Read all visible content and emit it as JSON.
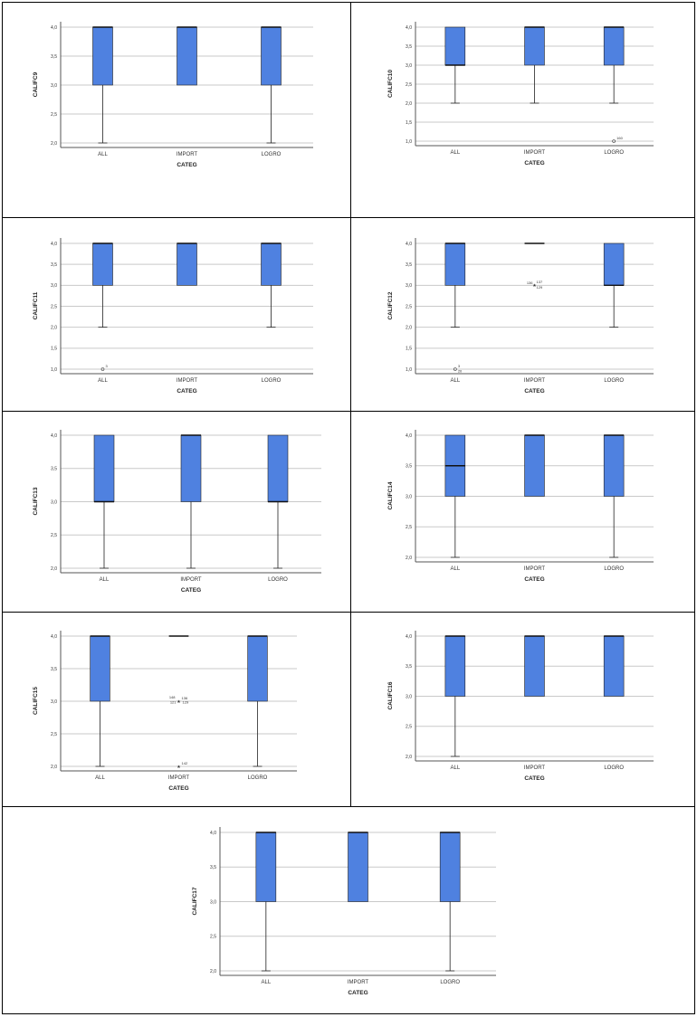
{
  "colors": {
    "box_fill": "#4f81e0",
    "box_stroke": "#222222",
    "grid": "#c9c9c9",
    "axis": "#555555",
    "text": "#333333"
  },
  "chart_data": [
    {
      "type": "boxplot",
      "ylabel": "CALIFC9",
      "xlabel": "CATEG",
      "yticks": [
        "2,0",
        "2,5",
        "3,0",
        "3,5",
        "4,0"
      ],
      "ylim": [
        2.0,
        4.0
      ],
      "categories": [
        "ALL",
        "IMPORT",
        "LOGRO"
      ],
      "boxes": [
        {
          "q1": 3.0,
          "median": 4.0,
          "q3": 4.0,
          "whisker_low": 2.0,
          "whisker_high": 4.0
        },
        {
          "q1": 3.0,
          "median": 4.0,
          "q3": 4.0,
          "whisker_low": 3.0,
          "whisker_high": 4.0
        },
        {
          "q1": 3.0,
          "median": 4.0,
          "q3": 4.0,
          "whisker_low": 2.0,
          "whisker_high": 4.0
        }
      ],
      "outliers": []
    },
    {
      "type": "boxplot",
      "ylabel": "CALIFC10",
      "xlabel": "CATEG",
      "yticks": [
        "1,0",
        "1,5",
        "2,0",
        "2,5",
        "3,0",
        "3,5",
        "4,0"
      ],
      "ylim": [
        1.0,
        4.0
      ],
      "categories": [
        "ALL",
        "IMPORT",
        "LOGRO"
      ],
      "boxes": [
        {
          "q1": 3.0,
          "median": 3.0,
          "q3": 4.0,
          "whisker_low": 2.0,
          "whisker_high": 4.0
        },
        {
          "q1": 3.0,
          "median": 4.0,
          "q3": 4.0,
          "whisker_low": 2.0,
          "whisker_high": 4.0
        },
        {
          "q1": 3.0,
          "median": 4.0,
          "q3": 4.0,
          "whisker_low": 2.0,
          "whisker_high": 4.0
        }
      ],
      "outliers": [
        {
          "category": 2,
          "value": 1.0,
          "marker": "circle",
          "labels": [
            "160"
          ]
        }
      ]
    },
    {
      "type": "boxplot",
      "ylabel": "CALIFC11",
      "xlabel": "CATEG",
      "yticks": [
        "1,0",
        "1,5",
        "2,0",
        "2,5",
        "3,0",
        "3,5",
        "4,0"
      ],
      "ylim": [
        1.0,
        4.0
      ],
      "categories": [
        "ALL",
        "IMPORT",
        "LOGRO"
      ],
      "boxes": [
        {
          "q1": 3.0,
          "median": 4.0,
          "q3": 4.0,
          "whisker_low": 2.0,
          "whisker_high": 4.0
        },
        {
          "q1": 3.0,
          "median": 4.0,
          "q3": 4.0,
          "whisker_low": 3.0,
          "whisker_high": 4.0
        },
        {
          "q1": 3.0,
          "median": 4.0,
          "q3": 4.0,
          "whisker_low": 2.0,
          "whisker_high": 4.0
        }
      ],
      "outliers": [
        {
          "category": 0,
          "value": 1.0,
          "marker": "circle",
          "labels": [
            "3"
          ]
        }
      ]
    },
    {
      "type": "boxplot",
      "ylabel": "CALIFC12",
      "xlabel": "CATEG",
      "yticks": [
        "1,0",
        "1,5",
        "2,0",
        "2,5",
        "3,0",
        "3,5",
        "4,0"
      ],
      "ylim": [
        1.0,
        4.0
      ],
      "categories": [
        "ALL",
        "IMPORT",
        "LOGRO"
      ],
      "boxes": [
        {
          "q1": 3.0,
          "median": 4.0,
          "q3": 4.0,
          "whisker_low": 2.0,
          "whisker_high": 4.0
        },
        {
          "q1": 4.0,
          "median": 4.0,
          "q3": 4.0,
          "whisker_low": 4.0,
          "whisker_high": 4.0
        },
        {
          "q1": 3.0,
          "median": 3.0,
          "q3": 4.0,
          "whisker_low": 2.0,
          "whisker_high": 4.0
        }
      ],
      "outliers": [
        {
          "category": 0,
          "value": 1.0,
          "marker": "circle",
          "labels": [
            "3",
            "20"
          ]
        },
        {
          "category": 1,
          "value": 3.0,
          "marker": "star",
          "labels": [
            "136",
            "137",
            "129"
          ]
        }
      ]
    },
    {
      "type": "boxplot",
      "ylabel": "CALIFC13",
      "xlabel": "CATEG",
      "yticks": [
        "2,0",
        "2,5",
        "3,0",
        "3,5",
        "4,0"
      ],
      "ylim": [
        2.0,
        4.0
      ],
      "categories": [
        "ALL",
        "IMPORT",
        "LOGRO"
      ],
      "boxes": [
        {
          "q1": 3.0,
          "median": 3.0,
          "q3": 4.0,
          "whisker_low": 2.0,
          "whisker_high": 4.0
        },
        {
          "q1": 3.0,
          "median": 4.0,
          "q3": 4.0,
          "whisker_low": 2.0,
          "whisker_high": 4.0
        },
        {
          "q1": 3.0,
          "median": 3.0,
          "q3": 4.0,
          "whisker_low": 2.0,
          "whisker_high": 4.0
        }
      ],
      "outliers": []
    },
    {
      "type": "boxplot",
      "ylabel": "CALIFC14",
      "xlabel": "CATEG",
      "yticks": [
        "2,0",
        "2,5",
        "3,0",
        "3,5",
        "4,0"
      ],
      "ylim": [
        2.0,
        4.0
      ],
      "categories": [
        "ALL",
        "IMPORT",
        "LOGRO"
      ],
      "boxes": [
        {
          "q1": 3.0,
          "median": 3.5,
          "q3": 4.0,
          "whisker_low": 2.0,
          "whisker_high": 4.0
        },
        {
          "q1": 3.0,
          "median": 4.0,
          "q3": 4.0,
          "whisker_low": 3.0,
          "whisker_high": 4.0
        },
        {
          "q1": 3.0,
          "median": 4.0,
          "q3": 4.0,
          "whisker_low": 2.0,
          "whisker_high": 4.0
        }
      ],
      "outliers": []
    },
    {
      "type": "boxplot",
      "ylabel": "CALIFC15",
      "xlabel": "CATEG",
      "yticks": [
        "2,0",
        "2,5",
        "3,0",
        "3,5",
        "4,0"
      ],
      "ylim": [
        2.0,
        4.0
      ],
      "categories": [
        "ALL",
        "IMPORT",
        "LOGRO"
      ],
      "boxes": [
        {
          "q1": 3.0,
          "median": 4.0,
          "q3": 4.0,
          "whisker_low": 2.0,
          "whisker_high": 4.0
        },
        {
          "q1": 4.0,
          "median": 4.0,
          "q3": 4.0,
          "whisker_low": 4.0,
          "whisker_high": 4.0
        },
        {
          "q1": 3.0,
          "median": 4.0,
          "q3": 4.0,
          "whisker_low": 2.0,
          "whisker_high": 4.0
        }
      ],
      "outliers": [
        {
          "category": 1,
          "value": 3.0,
          "marker": "star",
          "labels": [
            "136",
            "148",
            "121",
            "129"
          ]
        },
        {
          "category": 1,
          "value": 2.0,
          "marker": "star",
          "labels": [
            "142"
          ]
        }
      ]
    },
    {
      "type": "boxplot",
      "ylabel": "CALIFC16",
      "xlabel": "CATEG",
      "yticks": [
        "2,0",
        "2,5",
        "3,0",
        "3,5",
        "4,0"
      ],
      "ylim": [
        2.0,
        4.0
      ],
      "categories": [
        "ALL",
        "IMPORT",
        "LOGRO"
      ],
      "boxes": [
        {
          "q1": 3.0,
          "median": 4.0,
          "q3": 4.0,
          "whisker_low": 2.0,
          "whisker_high": 4.0
        },
        {
          "q1": 3.0,
          "median": 4.0,
          "q3": 4.0,
          "whisker_low": 3.0,
          "whisker_high": 4.0
        },
        {
          "q1": 3.0,
          "median": 4.0,
          "q3": 4.0,
          "whisker_low": 3.0,
          "whisker_high": 4.0
        }
      ],
      "outliers": []
    },
    {
      "type": "boxplot",
      "ylabel": "CALIFC17",
      "xlabel": "CATEG",
      "yticks": [
        "2,0",
        "2,5",
        "3,0",
        "3,5",
        "4,0"
      ],
      "ylim": [
        2.0,
        4.0
      ],
      "categories": [
        "ALL",
        "IMPORT",
        "LOGRO"
      ],
      "boxes": [
        {
          "q1": 3.0,
          "median": 4.0,
          "q3": 4.0,
          "whisker_low": 2.0,
          "whisker_high": 4.0
        },
        {
          "q1": 3.0,
          "median": 4.0,
          "q3": 4.0,
          "whisker_low": 3.0,
          "whisker_high": 4.0
        },
        {
          "q1": 3.0,
          "median": 4.0,
          "q3": 4.0,
          "whisker_low": 2.0,
          "whisker_high": 4.0
        }
      ],
      "outliers": []
    }
  ]
}
